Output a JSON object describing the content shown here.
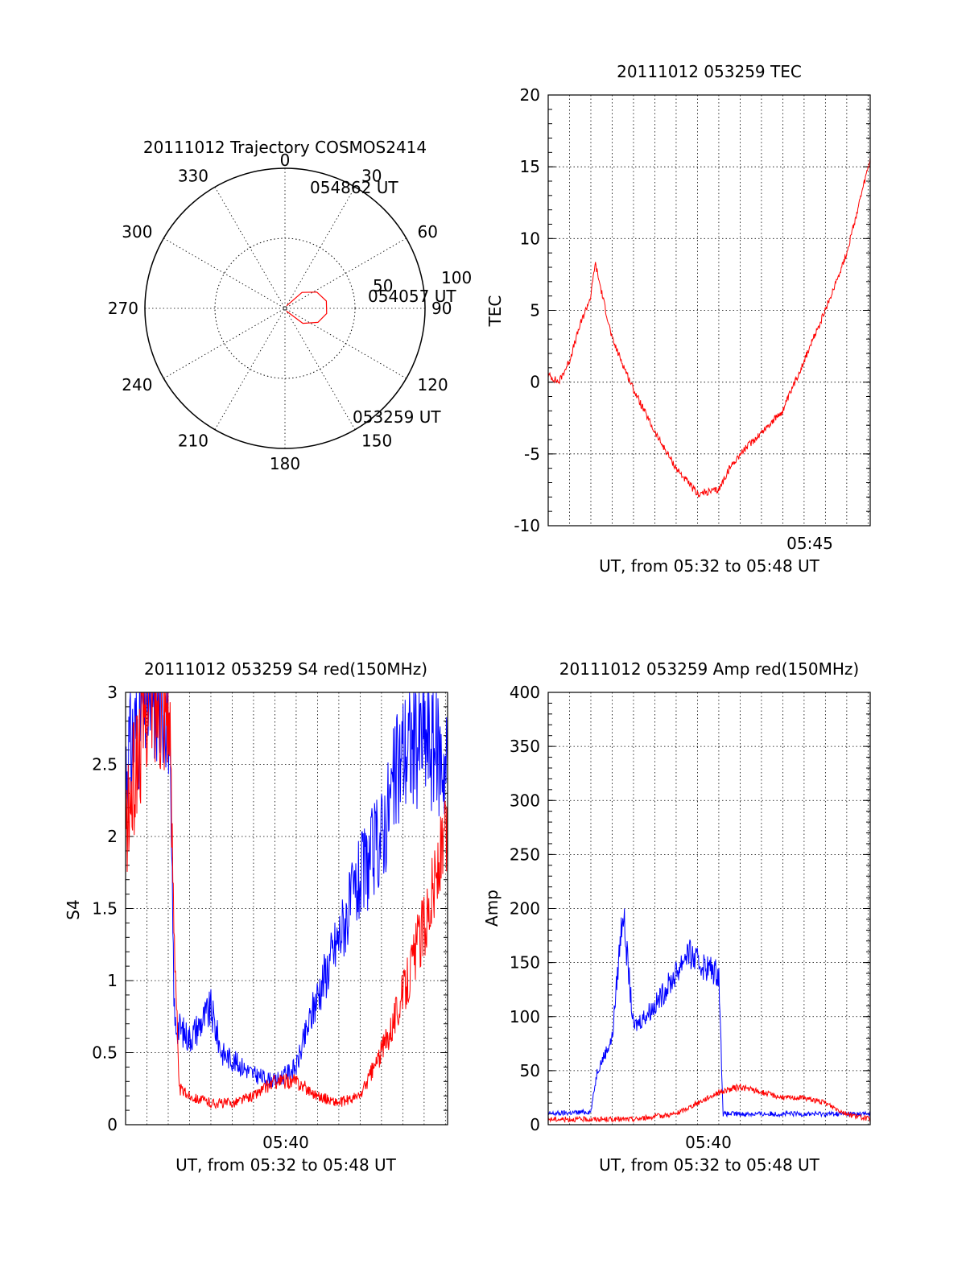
{
  "chart_data": [
    {
      "id": "polar",
      "type": "polar-trajectory",
      "title": "20111012 Trajectory COSMOS2414",
      "angle_labels": [
        "0",
        "30",
        "60",
        "90",
        "120",
        "150",
        "180",
        "210",
        "240",
        "270",
        "300",
        "330"
      ],
      "radial_labels": [
        "50",
        "100"
      ],
      "trajectory": {
        "color": "#ff0000",
        "points": [
          [
            152,
            88
          ],
          [
            130,
            75
          ],
          [
            113,
            67
          ],
          [
            97,
            63
          ],
          [
            80,
            63
          ],
          [
            63,
            67
          ],
          [
            47,
            75
          ],
          [
            33,
            88
          ]
        ]
      },
      "annotations": [
        {
          "text": "054862 UT"
        },
        {
          "text": "054057 UT"
        },
        {
          "text": "053259 UT"
        }
      ]
    },
    {
      "id": "tec",
      "type": "line",
      "title": "20111012 053259 TEC",
      "xlabel": "UT, from 05:32 to 05:48 UT",
      "ylabel": "TEC",
      "ylim": [
        -10,
        20
      ],
      "yticks": [
        "-10",
        "-5",
        "0",
        "5",
        "10",
        "15",
        "20"
      ],
      "xtick_labels": [
        {
          "label": "05:45"
        }
      ],
      "x_range_min": [
        0,
        15.1
      ],
      "series": [
        {
          "color": "#ff0000",
          "x": [
            0.0,
            0.5,
            1.0,
            1.5,
            2.0,
            2.2,
            3.0,
            4.0,
            5.0,
            6.0,
            7.0,
            8.0,
            8.5,
            9.0,
            10.0,
            11.0,
            12.0,
            13.0,
            14.0,
            15.1
          ],
          "y": [
            0.5,
            0.0,
            1.5,
            4.0,
            6.0,
            8.3,
            3.0,
            -0.5,
            -3.5,
            -6.0,
            -7.8,
            -7.5,
            -6.0,
            -5.0,
            -3.5,
            -2.0,
            1.5,
            5.0,
            9.0,
            15.5
          ]
        }
      ]
    },
    {
      "id": "s4",
      "type": "line",
      "title": "20111012 053259 S4 red(150MHz)",
      "xlabel": "UT, from 05:32 to 05:48 UT",
      "ylabel": "S4",
      "ylim": [
        0,
        3
      ],
      "yticks": [
        "0",
        "0.5",
        "1",
        "1.5",
        "2",
        "2.5",
        "3"
      ],
      "xtick_labels": [
        {
          "label": "05:40"
        }
      ],
      "x_range_min": [
        0,
        15.1
      ],
      "series": [
        {
          "color": "#0000ff",
          "x": [
            0.0,
            1.0,
            2.0,
            2.3,
            3.0,
            4.0,
            4.5,
            5.0,
            6.0,
            7.0,
            8.0,
            9.0,
            10.0,
            11.0,
            12.0,
            13.0,
            14.0,
            15.1
          ],
          "y": [
            2.5,
            3.0,
            3.0,
            0.7,
            0.6,
            0.8,
            0.5,
            0.45,
            0.35,
            0.3,
            0.4,
            0.9,
            1.3,
            1.7,
            2.0,
            2.6,
            2.7,
            2.5
          ]
        },
        {
          "color": "#ff0000",
          "x": [
            0.0,
            1.0,
            2.0,
            2.5,
            3.0,
            4.0,
            5.0,
            6.0,
            7.0,
            8.0,
            9.0,
            10.0,
            11.0,
            12.0,
            13.0,
            14.0,
            15.1
          ],
          "y": [
            2.0,
            3.0,
            3.0,
            0.25,
            0.2,
            0.15,
            0.15,
            0.2,
            0.3,
            0.3,
            0.2,
            0.15,
            0.2,
            0.5,
            0.9,
            1.4,
            2.0
          ]
        }
      ]
    },
    {
      "id": "amp",
      "type": "line",
      "title": "20111012 053259 Amp red(150MHz)",
      "xlabel": "UT, from 05:32 to 05:48 UT",
      "ylabel": "Amp",
      "ylim": [
        0,
        400
      ],
      "yticks": [
        "0",
        "50",
        "100",
        "150",
        "200",
        "250",
        "300",
        "350",
        "400"
      ],
      "xtick_labels": [
        {
          "label": "05:40"
        }
      ],
      "x_range_min": [
        0,
        15.1
      ],
      "series": [
        {
          "color": "#0000ff",
          "x": [
            0.0,
            2.0,
            2.3,
            3.0,
            3.5,
            4.0,
            5.0,
            6.0,
            6.5,
            7.0,
            8.0,
            8.2,
            9.0,
            12.0,
            15.1
          ],
          "y": [
            10,
            12,
            50,
            80,
            200,
            90,
            110,
            140,
            160,
            150,
            140,
            10,
            10,
            10,
            10
          ]
        },
        {
          "color": "#ff0000",
          "x": [
            0.0,
            2.0,
            4.0,
            6.0,
            7.0,
            8.0,
            9.0,
            10.0,
            11.0,
            12.0,
            13.0,
            14.0,
            15.1
          ],
          "y": [
            5,
            5,
            5,
            10,
            20,
            30,
            35,
            30,
            25,
            25,
            20,
            10,
            5
          ]
        }
      ]
    }
  ]
}
